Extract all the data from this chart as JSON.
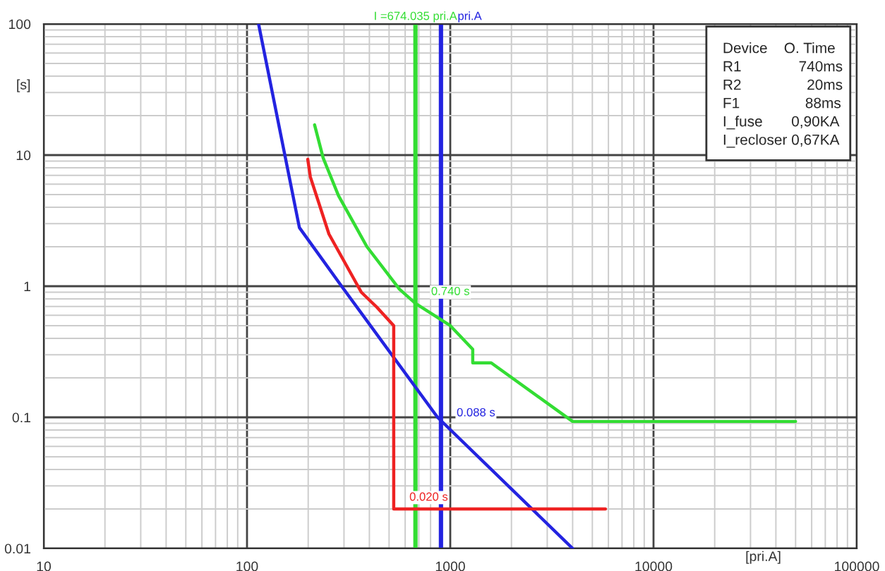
{
  "chart_data": {
    "type": "line",
    "xlabel": "[pri.A]",
    "ylabel": "[s]",
    "log": "xy",
    "grid": true,
    "marker": "none",
    "line_style": "solid",
    "xlim": [
      10,
      100000
    ],
    "ylim": [
      0.01,
      100
    ],
    "xticks": [
      10,
      100,
      1000,
      10000,
      100000
    ],
    "yticks": [
      0.01,
      0.1,
      1,
      10,
      100
    ],
    "series": [
      {
        "color": "#33dd33",
        "x": [
          215,
          237,
          282,
          389,
          562,
          674,
          1000,
          1290,
          1290,
          1590,
          4000,
          50000
        ],
        "values": [
          17,
          9.5,
          4.9,
          2,
          0.95,
          0.74,
          0.5,
          0.33,
          0.26,
          0.26,
          0.093,
          0.093
        ]
      },
      {
        "color": "#2323e0",
        "x": [
          114,
          181,
          292,
          866,
          4000
        ],
        "values": [
          100,
          2.8,
          1,
          0.1,
          0.01
        ]
      },
      {
        "color": "#ee2222",
        "x": [
          199,
          205,
          253,
          365,
          436,
          527,
          527,
          5800
        ],
        "values": [
          9.3,
          6.8,
          2.5,
          0.9,
          0.69,
          0.5,
          0.02,
          0.02
        ]
      }
    ],
    "ref_lines": [
      {
        "axis": "x",
        "value": 674.035,
        "label": "I =674.035 pri.A",
        "color": "#33dd33"
      },
      {
        "axis": "x",
        "value": 900,
        "label": "pri.A",
        "color": "#2323e0"
      }
    ],
    "annotations": [
      {
        "text": "0.740 s",
        "x": 674,
        "y": 0.74
      },
      {
        "text": "0.088 s",
        "x": 900,
        "y": 0.088
      },
      {
        "text": "0.020 s",
        "x": 527,
        "y": 0.02
      },
      "Device    O. Time",
      "R1              740ms",
      "R2                20ms",
      "F1                88ms",
      "I_fuse       0,90KA",
      "I_recloser 0,67KA"
    ]
  }
}
